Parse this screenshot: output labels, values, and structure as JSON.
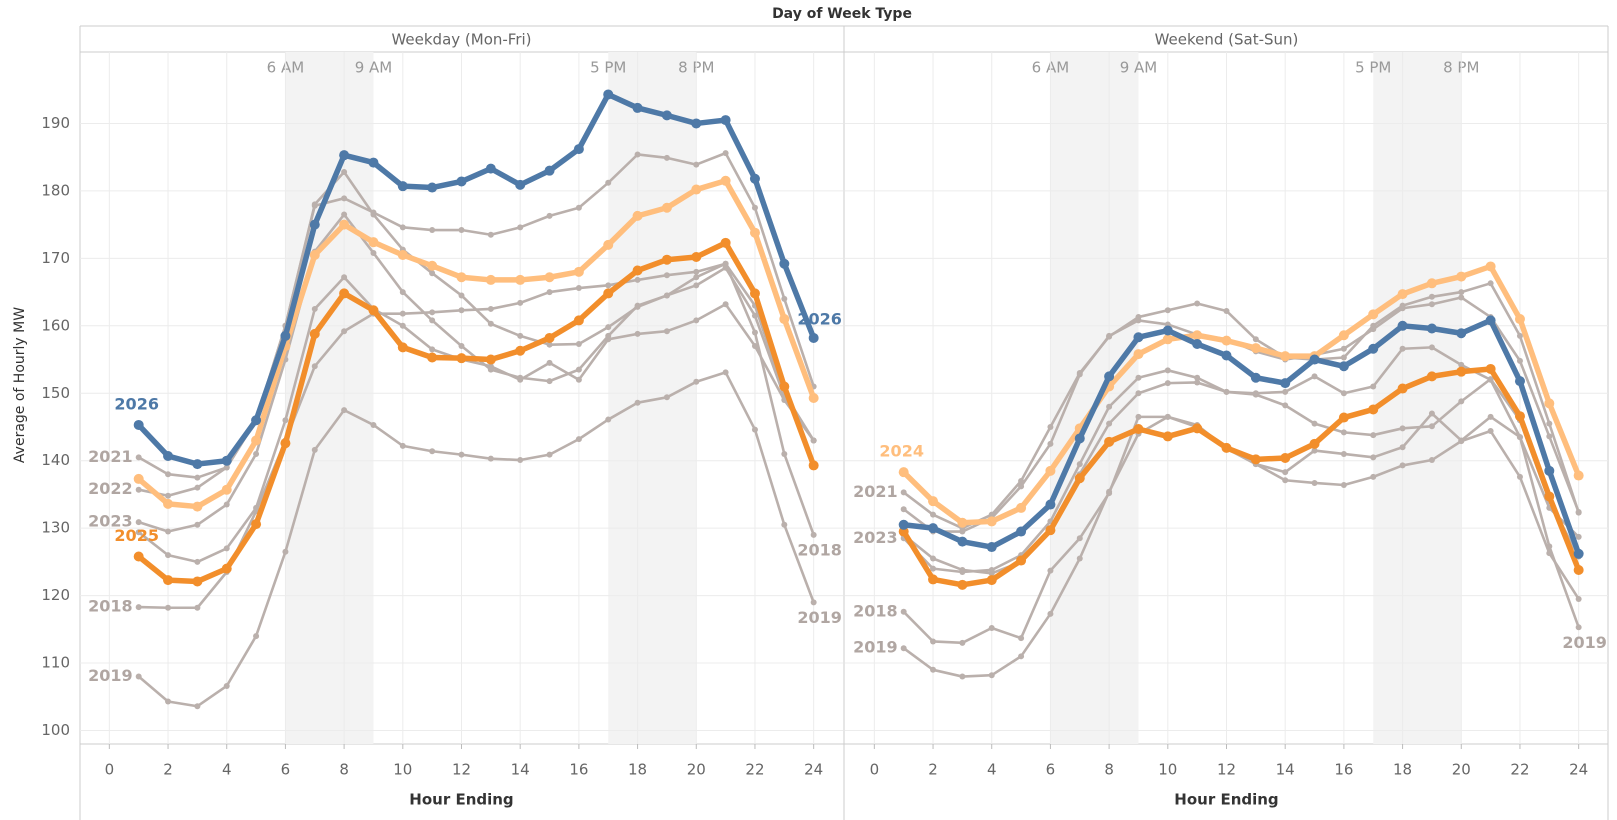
{
  "chart_data": {
    "type": "line",
    "title": "Day of Week Type",
    "y_label": "Average of Hourly MW",
    "x_label": "Hour Ending",
    "xlim": [
      -1,
      25
    ],
    "ylim": [
      98,
      200
    ],
    "xticks": [
      0,
      2,
      4,
      6,
      8,
      10,
      12,
      14,
      16,
      18,
      20,
      22,
      24
    ],
    "yticks": [
      100,
      110,
      120,
      130,
      140,
      150,
      160,
      170,
      180,
      190
    ],
    "grid": true,
    "bands": [
      {
        "start": 6,
        "end": 9,
        "start_label": "6 AM",
        "end_label": "9 AM"
      },
      {
        "start": 17,
        "end": 20,
        "start_label": "5 PM",
        "end_label": "8 PM"
      }
    ],
    "x": [
      1,
      2,
      3,
      4,
      5,
      6,
      7,
      8,
      9,
      10,
      11,
      12,
      13,
      14,
      15,
      16,
      17,
      18,
      19,
      20,
      21,
      22,
      23,
      24
    ],
    "panels": [
      {
        "title": "Weekday (Mon-Fri)",
        "series": [
          {
            "name": "2019",
            "color": "#bab0ac",
            "label_at": [
              "start",
              "end"
            ],
            "values": [
              108,
              104.3,
              103.6,
              106.6,
              114,
              126.5,
              141.6,
              147.5,
              145.3,
              142.2,
              141.4,
              140.9,
              140.3,
              140.1,
              140.9,
              143.2,
              146.1,
              148.6,
              149.4,
              151.7,
              153.1,
              144.6,
              130.5,
              119
            ]
          },
          {
            "name": "2018",
            "color": "#bab0ac",
            "label_at": [
              "start",
              "end"
            ],
            "values": [
              118.3,
              118.2,
              118.2,
              123.5,
              132.5,
              143,
              154,
              159.2,
              161.8,
              161.8,
              162,
              162.3,
              162.5,
              163.4,
              165,
              165.6,
              166,
              166.8,
              167.5,
              168,
              169.2,
              159,
              141,
              129
            ]
          },
          {
            "color": "#bab0ac",
            "values": [
              129.4,
              126,
              125,
              127,
              133,
              146,
              162.5,
              167.2,
              162.5,
              160,
              156.5,
              155,
              154,
              152,
              154.5,
              152,
              158,
              158.8,
              159.2,
              160.8,
              163.2,
              157,
              149,
              143
            ]
          },
          {
            "name": "2023",
            "color": "#bab0ac",
            "label_at": [
              "start"
            ],
            "values": [
              130.9,
              129.5,
              130.5,
              133.5,
              141,
              155,
              171,
              176.5,
              170.8,
              165,
              160.8,
              157,
              153.5,
              152.3,
              151.8,
              153.5,
              158.5,
              163,
              164.5,
              166,
              168.6,
              161.5,
              149.5,
              143
            ]
          },
          {
            "name": "2022",
            "color": "#bab0ac",
            "label_at": [
              "start"
            ],
            "values": [
              135.7,
              134.8,
              136,
              139,
              146,
              160,
              177.8,
              178.9,
              176.8,
              174.6,
              174.2,
              174.2,
              173.5,
              174.6,
              176.3,
              177.5,
              181.2,
              185.4,
              184.9,
              183.9,
              185.6,
              177.5,
              164,
              151
            ]
          },
          {
            "name": "2021",
            "color": "#bab0ac",
            "label_at": [
              "start"
            ],
            "values": [
              140.5,
              138,
              137.5,
              139,
              146,
              160,
              178,
              182.8,
              176.5,
              171.3,
              167.8,
              164.5,
              160.3,
              158.5,
              157.2,
              157.3,
              159.8,
              162.8,
              164.5,
              167.2,
              169.2,
              163,
              150,
              143
            ]
          },
          {
            "name": "2025",
            "color": "#f28e2b",
            "highlight": true,
            "label_at": [
              "start"
            ],
            "values": [
              125.8,
              122.3,
              122.1,
              124,
              130.6,
              142.6,
              158.8,
              164.8,
              162.3,
              156.8,
              155.3,
              155.2,
              155,
              156.3,
              158.2,
              160.8,
              164.8,
              168.2,
              169.8,
              170.2,
              172.3,
              164.8,
              151,
              139.3
            ]
          },
          {
            "color": "#ffbe7d",
            "highlight": true,
            "values": [
              137.3,
              133.6,
              133.2,
              135.7,
              143,
              157,
              170.5,
              175,
              172.4,
              170.5,
              168.9,
              167.2,
              166.8,
              166.8,
              167.2,
              168,
              172,
              176.3,
              177.5,
              180.2,
              181.5,
              173.8,
              161,
              149.3
            ]
          },
          {
            "name": "2026",
            "color": "#4e79a7",
            "highlight": true,
            "label_at": [
              "start",
              "end"
            ],
            "values": [
              145.3,
              140.7,
              139.5,
              140,
              146,
              158.5,
              175,
              185.3,
              184.2,
              180.7,
              180.5,
              181.4,
              183.3,
              180.9,
              183,
              186.2,
              194.3,
              192.3,
              191.2,
              190,
              190.5,
              181.8,
              169.2,
              158.2
            ]
          }
        ]
      },
      {
        "title": "Weekend (Sat-Sun)",
        "series": [
          {
            "name": "2019",
            "color": "#bab0ac",
            "label_at": [
              "start",
              "end"
            ],
            "values": [
              112.2,
              109,
              108,
              108.2,
              111,
              117.3,
              125.5,
              135.4,
              144,
              146.5,
              145.3,
              141.8,
              139.5,
              138.3,
              141.5,
              141,
              140.5,
              142,
              147,
              143,
              146.5,
              143.5,
              127.3,
              115.3
            ]
          },
          {
            "name": "2018",
            "color": "#bab0ac",
            "label_at": [
              "start"
            ],
            "values": [
              117.6,
              113.2,
              113,
              115.2,
              113.7,
              123.7,
              128.5,
              135.2,
              146.5,
              146.5,
              145,
              142,
              139.5,
              137.1,
              136.7,
              136.4,
              137.6,
              139.3,
              140.1,
              142.9,
              144.4,
              137.6,
              126.3,
              119.5
            ]
          },
          {
            "color": "#bab0ac",
            "values": [
              129,
              125.5,
              123.8,
              123.3,
              125,
              130,
              138,
              145.5,
              150,
              151.5,
              151.6,
              150.2,
              150,
              150.2,
              152.5,
              150,
              151,
              156.6,
              156.8,
              154.2,
              152,
              143.5,
              133,
              128.7
            ]
          },
          {
            "name": "2023",
            "color": "#bab0ac",
            "label_at": [
              "start"
            ],
            "values": [
              128.5,
              124,
              123.5,
              123.8,
              126,
              131,
              139.5,
              148,
              152.3,
              153.4,
              152.3,
              150.2,
              149.8,
              148.2,
              145.5,
              144.2,
              143.8,
              144.8,
              145.1,
              148.8,
              152.1,
              146,
              134,
              125.8
            ]
          },
          {
            "color": "#bab0ac",
            "values": [
              132.8,
              129.5,
              129.5,
              131.5,
              136.2,
              142.5,
              152.8,
              158.5,
              160.8,
              160.2,
              158.7,
              158,
              156.2,
              155,
              155.7,
              156.6,
              159.5,
              162.6,
              163.2,
              164.2,
              161.3,
              154.8,
              143.6,
              132.4
            ]
          },
          {
            "name": "2021",
            "color": "#bab0ac",
            "label_at": [
              "start"
            ],
            "values": [
              135.3,
              132,
              130,
              132,
              137,
              145,
              153,
              158.4,
              161.3,
              162.3,
              163.3,
              162.2,
              158,
              155.3,
              155,
              155.3,
              160,
              163,
              164.3,
              165,
              166.3,
              158.5,
              145.5,
              132.3
            ]
          },
          {
            "color": "#f28e2b",
            "highlight": true,
            "values": [
              129.5,
              122.4,
              121.6,
              122.3,
              125.2,
              129.7,
              137.4,
              142.8,
              144.7,
              143.6,
              144.8,
              141.9,
              140.2,
              140.4,
              142.5,
              146.4,
              147.6,
              150.7,
              152.5,
              153.2,
              153.6,
              146.6,
              134.7,
              123.8
            ]
          },
          {
            "name": "2024",
            "color": "#ffbe7d",
            "highlight": true,
            "label_at": [
              "start"
            ],
            "values": [
              138.3,
              134,
              130.8,
              131,
              133,
              138.5,
              144.8,
              151,
              155.8,
              158,
              158.6,
              157.8,
              156.7,
              155.5,
              155.5,
              158.6,
              161.7,
              164.7,
              166.3,
              167.3,
              168.8,
              161,
              148.5,
              137.8
            ]
          },
          {
            "color": "#4e79a7",
            "highlight": true,
            "values": [
              130.5,
              130,
              128,
              127.2,
              129.5,
              133.5,
              143.3,
              152.5,
              158.3,
              159.3,
              157.3,
              155.6,
              152.3,
              151.5,
              155,
              154,
              156.6,
              160,
              159.6,
              158.9,
              160.8,
              151.8,
              138.5,
              126.2
            ]
          }
        ]
      }
    ]
  }
}
